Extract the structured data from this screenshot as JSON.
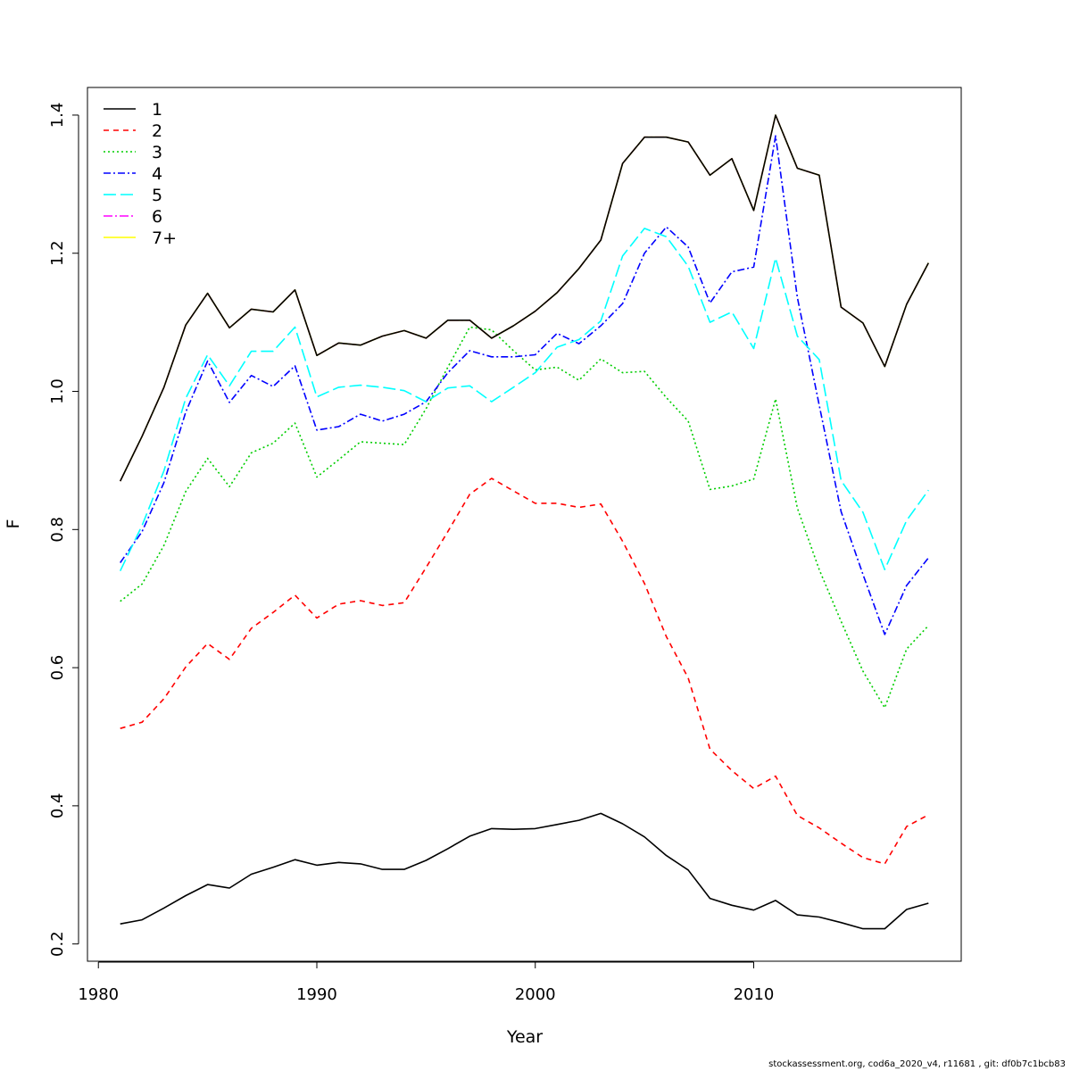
{
  "footer": "stockassessment.org, cod6a_2020_v4, r11681 , git: df0b7c1bcb83",
  "chart_data": {
    "type": "line",
    "xlabel": "Year",
    "ylabel": "F",
    "xlim": [
      1979.5,
      2019.5
    ],
    "ylim": [
      0.175,
      1.44
    ],
    "x_ticks": [
      1980,
      1990,
      2000,
      2010
    ],
    "y_ticks": [
      0.2,
      0.4,
      0.6,
      0.8,
      1.0,
      1.2,
      1.4
    ],
    "y_tick_labels": [
      "0.2",
      "0.4",
      "0.6",
      "0.8",
      "1.0",
      "1.2",
      "1.4"
    ],
    "grid": false,
    "legend_position": "top-left",
    "x": [
      1981,
      1982,
      1983,
      1984,
      1985,
      1986,
      1987,
      1988,
      1989,
      1990,
      1991,
      1992,
      1993,
      1994,
      1995,
      1996,
      1997,
      1998,
      1999,
      2000,
      2001,
      2002,
      2003,
      2004,
      2005,
      2006,
      2007,
      2008,
      2009,
      2010,
      2011,
      2012,
      2013,
      2014,
      2015,
      2016,
      2017,
      2018
    ],
    "series": [
      {
        "name": "1",
        "color": "#000000",
        "dash": "",
        "values": [
          0.229,
          0.235,
          0.252,
          0.27,
          0.286,
          0.281,
          0.301,
          0.311,
          0.322,
          0.314,
          0.318,
          0.316,
          0.308,
          0.308,
          0.321,
          0.338,
          0.356,
          0.367,
          0.366,
          0.367,
          0.373,
          0.379,
          0.389,
          0.374,
          0.355,
          0.328,
          0.307,
          0.266,
          0.256,
          0.249,
          0.263,
          0.242,
          0.239,
          0.231,
          0.222,
          0.222,
          0.25,
          0.259
        ]
      },
      {
        "name": "2",
        "color": "#ff0000",
        "dash": "6,5",
        "values": [
          0.512,
          0.521,
          0.555,
          0.601,
          0.635,
          0.612,
          0.657,
          0.68,
          0.705,
          0.672,
          0.692,
          0.697,
          0.69,
          0.694,
          0.745,
          0.797,
          0.851,
          0.874,
          0.856,
          0.838,
          0.838,
          0.832,
          0.837,
          0.783,
          0.722,
          0.645,
          0.585,
          0.482,
          0.451,
          0.425,
          0.443,
          0.386,
          0.368,
          0.346,
          0.325,
          0.316,
          0.37,
          0.387
        ]
      },
      {
        "name": "3",
        "color": "#00cd00",
        "dash": "2,3",
        "values": [
          0.696,
          0.721,
          0.777,
          0.855,
          0.903,
          0.862,
          0.911,
          0.925,
          0.954,
          0.876,
          0.901,
          0.927,
          0.925,
          0.923,
          0.975,
          1.035,
          1.093,
          1.089,
          1.059,
          1.031,
          1.035,
          1.016,
          1.047,
          1.027,
          1.029,
          0.991,
          0.957,
          0.858,
          0.863,
          0.873,
          0.989,
          0.831,
          0.742,
          0.667,
          0.595,
          0.542,
          0.627,
          0.661
        ]
      },
      {
        "name": "4",
        "color": "#0000ff",
        "dash": "8,3,2,3",
        "values": [
          0.752,
          0.797,
          0.868,
          0.97,
          1.044,
          0.984,
          1.023,
          1.007,
          1.037,
          0.944,
          0.949,
          0.967,
          0.957,
          0.967,
          0.985,
          1.027,
          1.059,
          1.05,
          1.05,
          1.053,
          1.084,
          1.069,
          1.095,
          1.127,
          1.2,
          1.238,
          1.209,
          1.128,
          1.173,
          1.18,
          1.37,
          1.136,
          0.98,
          0.826,
          0.735,
          0.648,
          0.719,
          0.759
        ]
      },
      {
        "name": "5",
        "color": "#00ffff",
        "dash": "14,5",
        "values": [
          0.74,
          0.806,
          0.885,
          0.99,
          1.053,
          1.008,
          1.058,
          1.058,
          1.093,
          0.992,
          1.006,
          1.009,
          1.006,
          1.001,
          0.985,
          1.005,
          1.008,
          0.985,
          1.006,
          1.027,
          1.064,
          1.075,
          1.102,
          1.196,
          1.236,
          1.224,
          1.181,
          1.1,
          1.115,
          1.062,
          1.193,
          1.08,
          1.046,
          0.871,
          0.825,
          0.742,
          0.813,
          0.857
        ]
      },
      {
        "name": "6",
        "color": "#ff00ff",
        "dash": "10,3,2,3",
        "values": [
          0.87,
          0.935,
          1.006,
          1.096,
          1.142,
          1.092,
          1.119,
          1.115,
          1.147,
          1.052,
          1.07,
          1.067,
          1.08,
          1.088,
          1.077,
          1.103,
          1.103,
          1.077,
          1.095,
          1.116,
          1.143,
          1.178,
          1.219,
          1.33,
          1.368,
          1.368,
          1.361,
          1.313,
          1.337,
          1.262,
          1.4,
          1.323,
          1.313,
          1.122,
          1.099,
          1.036,
          1.126,
          1.186
        ]
      },
      {
        "name": "7+",
        "color": "#ffff00",
        "dash": "",
        "values": [
          0.87,
          0.935,
          1.006,
          1.096,
          1.142,
          1.092,
          1.119,
          1.115,
          1.147,
          1.052,
          1.07,
          1.067,
          1.08,
          1.088,
          1.077,
          1.103,
          1.103,
          1.077,
          1.095,
          1.116,
          1.143,
          1.178,
          1.219,
          1.33,
          1.368,
          1.368,
          1.361,
          1.313,
          1.337,
          1.262,
          1.4,
          1.323,
          1.313,
          1.122,
          1.099,
          1.036,
          1.126,
          1.186
        ]
      },
      {
        "name": "",
        "color": "#000000",
        "dash": "",
        "legend": false,
        "values": [
          0.87,
          0.935,
          1.006,
          1.096,
          1.142,
          1.092,
          1.119,
          1.115,
          1.147,
          1.052,
          1.07,
          1.067,
          1.08,
          1.088,
          1.077,
          1.103,
          1.103,
          1.077,
          1.095,
          1.116,
          1.143,
          1.178,
          1.219,
          1.33,
          1.368,
          1.368,
          1.361,
          1.313,
          1.337,
          1.262,
          1.4,
          1.323,
          1.313,
          1.122,
          1.099,
          1.036,
          1.126,
          1.186
        ]
      }
    ]
  }
}
